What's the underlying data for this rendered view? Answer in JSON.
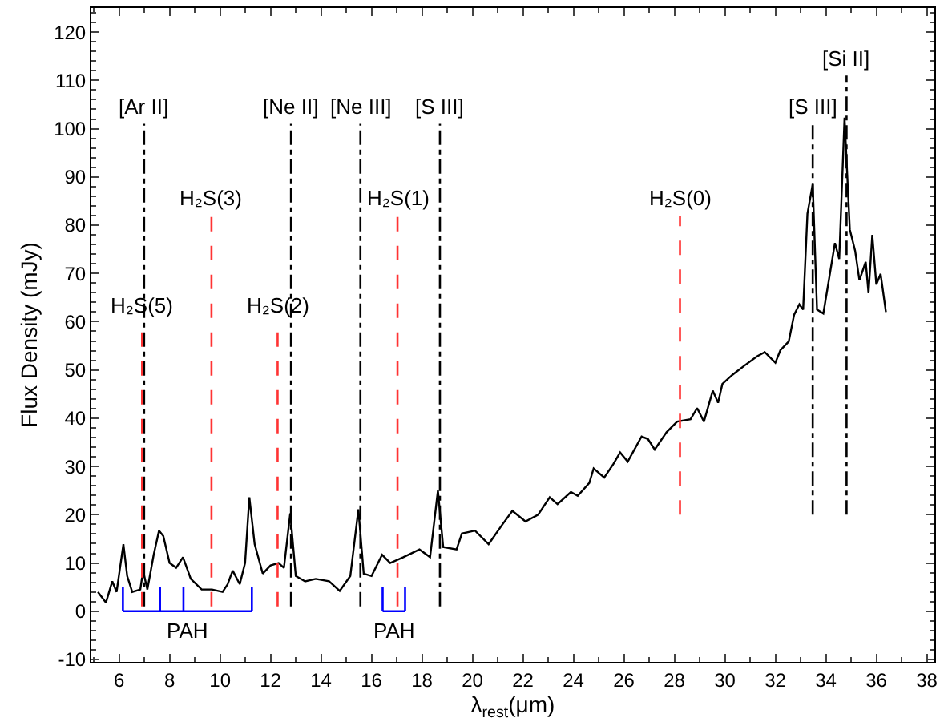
{
  "chart_data": {
    "type": "line",
    "xlabel": "λ$_{rest}$(μm)",
    "ylabel": "Flux Density (mJy)",
    "xlim": [
      4.9,
      38.3
    ],
    "xticks": [
      6,
      8,
      10,
      12,
      14,
      16,
      18,
      20,
      22,
      24,
      26,
      28,
      30,
      32,
      34,
      36,
      38
    ],
    "ylim": [
      -10.5,
      125
    ],
    "yticks": [
      -10,
      0,
      10,
      20,
      30,
      40,
      50,
      60,
      70,
      80,
      90,
      100,
      110,
      120
    ],
    "grid": false,
    "marker": "none",
    "line_style": "solid",
    "series": [
      {
        "color": "#000000",
        "x": [
          5.16,
          5.48,
          5.73,
          5.9,
          6.17,
          6.32,
          6.52,
          6.84,
          6.95,
          7.12,
          7.37,
          7.58,
          7.75,
          8.0,
          8.26,
          8.53,
          8.84,
          9.27,
          9.68,
          10.1,
          10.3,
          10.5,
          10.78,
          10.99,
          11.16,
          11.37,
          11.69,
          12.0,
          12.32,
          12.53,
          12.78,
          13.0,
          13.37,
          13.79,
          14.32,
          14.74,
          15.16,
          15.48,
          15.69,
          16.0,
          16.42,
          16.74,
          17.26,
          17.9,
          18.32,
          18.63,
          18.84,
          19.37,
          19.58,
          20.1,
          20.64,
          21.16,
          21.58,
          22.1,
          22.6,
          23.06,
          23.37,
          23.9,
          24.17,
          24.63,
          24.8,
          25.22,
          25.58,
          25.85,
          26.15,
          26.7,
          26.95,
          27.22,
          27.69,
          28.11,
          28.64,
          28.9,
          29.17,
          29.52,
          29.73,
          29.9,
          30.3,
          30.8,
          31.27,
          31.58,
          32.0,
          32.2,
          32.53,
          32.74,
          32.95,
          33.1,
          33.27,
          33.48,
          33.65,
          33.9,
          34.1,
          34.36,
          34.53,
          34.74,
          34.95,
          35.16,
          35.33,
          35.58,
          35.69,
          35.84,
          36.0,
          36.17,
          36.38
        ],
        "values": [
          4,
          1.8,
          6.2,
          4,
          13.9,
          7.3,
          4,
          4.5,
          8.4,
          4.5,
          11.7,
          16.7,
          15.6,
          10,
          9,
          11.2,
          6.7,
          4.5,
          4.5,
          4,
          5.6,
          8.4,
          5.6,
          10,
          23.6,
          13.9,
          7.8,
          9.5,
          10,
          9,
          20.3,
          7.3,
          6.2,
          6.7,
          6.2,
          4.2,
          7.3,
          21.1,
          7.8,
          7.3,
          11.7,
          10,
          11.2,
          12.8,
          11.2,
          25,
          13.3,
          12.8,
          16.1,
          16.7,
          13.9,
          17.8,
          20.8,
          18.6,
          20,
          23.6,
          22.2,
          24.7,
          23.9,
          26.6,
          29.6,
          27.7,
          30.5,
          32.9,
          31,
          36.2,
          35.7,
          33.5,
          37.1,
          39.3,
          39.8,
          42.1,
          39.3,
          45.7,
          43.2,
          47.1,
          49,
          51,
          52.8,
          53.7,
          51.5,
          54.1,
          55.9,
          61.4,
          63.6,
          62.5,
          82.4,
          88.5,
          62.5,
          61.7,
          68,
          76.3,
          73,
          102.3,
          79.1,
          74.7,
          68.6,
          72.4,
          65.9,
          78,
          67.7,
          69.9,
          62
        ]
      }
    ],
    "ref_lines": [
      {
        "axis": "x",
        "value": 6.99,
        "label": "[Ar II]",
        "color": "#000000",
        "line_style": "dotted"
      },
      {
        "axis": "x",
        "value": 12.81,
        "label": "[Ne II]",
        "color": "#000000",
        "line_style": "dotted"
      },
      {
        "axis": "x",
        "value": 15.56,
        "label": "[Ne III]",
        "color": "#000000",
        "line_style": "dotted"
      },
      {
        "axis": "x",
        "value": 18.71,
        "label": "[S III]",
        "color": "#000000",
        "line_style": "dotted"
      },
      {
        "axis": "x",
        "value": 33.48,
        "label": "[S III]",
        "color": "#000000",
        "line_style": "dotted"
      },
      {
        "axis": "x",
        "value": 34.82,
        "label": "[Si II]",
        "color": "#000000",
        "line_style": "dotted"
      },
      {
        "axis": "x",
        "value": 6.91,
        "label": "H₂S(5)",
        "color": "#ff3333",
        "line_style": "dashed"
      },
      {
        "axis": "x",
        "value": 9.66,
        "label": "H₂S(3)",
        "color": "#ff3333",
        "line_style": "dashed"
      },
      {
        "axis": "x",
        "value": 12.28,
        "label": "H₂S(2)",
        "color": "#ff3333",
        "line_style": "dashed"
      },
      {
        "axis": "x",
        "value": 17.03,
        "label": "H₂S(1)",
        "color": "#ff3333",
        "line_style": "dashed"
      },
      {
        "axis": "x",
        "value": 28.22,
        "label": "H₂S(0)",
        "color": "#ff3333",
        "line_style": "dashed"
      }
    ],
    "annotations": [
      "PAH",
      "PAH"
    ]
  }
}
